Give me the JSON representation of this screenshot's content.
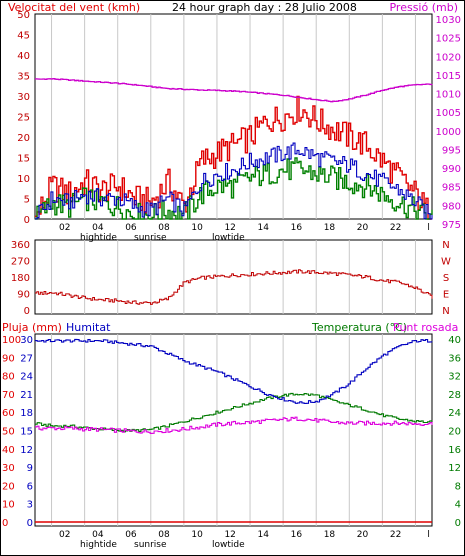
{
  "header": {
    "left_title": "Velocitat del vent (kmh)",
    "center_title": "24 hour graph day : 28 Julio 2008",
    "right_title": "Pressió (mb)"
  },
  "panel3_header": {
    "rain_label": "Pluja (mm)",
    "humidity_label": "Humitat",
    "temp_label": "Temperatura (°C)",
    "dew_label": "Punt rosada"
  },
  "hour_ticks": [
    "02",
    "04",
    "06",
    "08",
    "10",
    "12",
    "14",
    "16",
    "18",
    "20",
    "22",
    "l"
  ],
  "events_top": {
    "hightide": "hightide",
    "sunrise": "sunrise",
    "lowtide": "lowtide"
  },
  "events_bottom": {
    "hightide": "hightide",
    "sunrise": "sunrise",
    "lowtide": "lowtide"
  },
  "colors": {
    "gust": "#e00000",
    "wind": "#0000c0",
    "green": "#008000",
    "pressure": "#cc00cc",
    "humidity": "#0000c0",
    "temp": "#007a00",
    "dew": "#dd00dd",
    "rain": "#e00000",
    "grid": "#c8c8c8",
    "axis_left_red": "#c00000",
    "axis_right_magenta": "#cc00cc"
  },
  "chart_data": [
    {
      "type": "line",
      "title": "24 hour graph day : 28 Julio 2008",
      "ylabel": "Velocitat del vent (kmh)",
      "ylabel_right": "Pressió (mb)",
      "ylim": [
        0,
        50
      ],
      "ylim_right": [
        975,
        1030
      ],
      "yticks": [
        "50",
        "45",
        "40",
        "35",
        "30",
        "25",
        "20",
        "15",
        "10",
        "5",
        "0"
      ],
      "yticks_right": [
        "1030",
        "1025",
        "1020",
        "1015",
        "1010",
        "1005",
        "1000",
        "995",
        "990",
        "985",
        "980",
        "975"
      ],
      "hours": [
        0,
        1,
        2,
        3,
        4,
        5,
        6,
        7,
        8,
        9,
        10,
        11,
        12,
        13,
        14,
        15,
        16,
        17,
        18,
        19,
        20,
        21,
        22,
        23,
        24
      ],
      "series": [
        {
          "name": "gust",
          "values": [
            0,
            8,
            6,
            9,
            7,
            8,
            5,
            4,
            9,
            3,
            14,
            16,
            18,
            20,
            24,
            25,
            27,
            24,
            22,
            20,
            18,
            14,
            10,
            6,
            0
          ]
        },
        {
          "name": "wind",
          "values": [
            0,
            5,
            4,
            6,
            5,
            5,
            3,
            2,
            5,
            2,
            9,
            11,
            12,
            14,
            15,
            16,
            17,
            15,
            14,
            13,
            11,
            9,
            7,
            4,
            0
          ]
        },
        {
          "name": "green",
          "values": [
            0,
            4,
            3,
            5,
            4,
            3,
            1,
            1,
            2,
            1,
            6,
            8,
            8,
            10,
            11,
            12,
            12,
            11,
            10,
            9,
            8,
            6,
            4,
            2,
            0
          ]
        },
        {
          "name": "pressure",
          "values": [
            1012.5,
            1012.6,
            1012.3,
            1012,
            1011.7,
            1011.4,
            1011,
            1010.5,
            1010,
            1009.8,
            1009.6,
            1009.5,
            1009.3,
            1009,
            1008.6,
            1008.2,
            1007.6,
            1007,
            1006.5,
            1007.2,
            1008.3,
            1009.6,
            1010.5,
            1011,
            1011.2
          ]
        }
      ]
    },
    {
      "type": "line",
      "ylim": [
        0,
        360
      ],
      "yticks": [
        "360",
        "270",
        "180",
        "90",
        "0"
      ],
      "compass": [
        "N",
        "W",
        "S",
        "E",
        "N"
      ],
      "hours": [
        0,
        1,
        2,
        3,
        4,
        5,
        6,
        7,
        8,
        9,
        10,
        11,
        12,
        13,
        14,
        15,
        16,
        17,
        18,
        19,
        20,
        21,
        22,
        23,
        24
      ],
      "series": [
        {
          "name": "direction",
          "values": [
            90,
            95,
            80,
            65,
            55,
            50,
            40,
            38,
            60,
            150,
            175,
            182,
            190,
            195,
            200,
            205,
            210,
            205,
            200,
            190,
            180,
            160,
            150,
            120,
            70
          ]
        }
      ]
    },
    {
      "type": "line",
      "ylim": [
        0,
        100
      ],
      "ylim_right": [
        0,
        40
      ],
      "yticks": [
        "100",
        "90",
        "80",
        "70",
        "60",
        "50",
        "40",
        "30",
        "20",
        "10",
        "0"
      ],
      "yticks_mid": [
        "30",
        "27",
        "24",
        "21",
        "18",
        "15",
        "12",
        "9",
        "6",
        "3",
        "0"
      ],
      "yticks_right": [
        "40",
        "36",
        "32",
        "28",
        "24",
        "20",
        "16",
        "12",
        "8",
        "4",
        "0"
      ],
      "hours": [
        0,
        1,
        2,
        3,
        4,
        5,
        6,
        7,
        8,
        9,
        10,
        11,
        12,
        13,
        14,
        15,
        16,
        17,
        18,
        19,
        20,
        21,
        22,
        23,
        24
      ],
      "series": [
        {
          "name": "Humitat",
          "values": [
            99,
            99,
            99,
            99,
            99,
            98,
            97,
            96,
            92,
            88,
            85,
            82,
            78,
            74,
            70,
            67,
            65,
            66,
            70,
            76,
            84,
            91,
            96,
            99,
            99
          ]
        },
        {
          "name": "Temperatura (°C)",
          "values": [
            21.5,
            21,
            21,
            20.6,
            20.3,
            20,
            20,
            20.2,
            21,
            22,
            23,
            24,
            25,
            26,
            27,
            27.7,
            28,
            27.7,
            26.5,
            25.5,
            24.5,
            23.3,
            22.5,
            22,
            21.8
          ]
        },
        {
          "name": "Punt rosada",
          "values": [
            20.5,
            20.5,
            20.5,
            20.3,
            20.2,
            20,
            19.8,
            19.8,
            20,
            20.3,
            20.8,
            21.3,
            21.6,
            21.8,
            22.1,
            22.4,
            22.6,
            22.2,
            21.8,
            21.6,
            21.6,
            21.6,
            21.6,
            21.5,
            21.5
          ]
        },
        {
          "name": "Pluja (mm)",
          "values": [
            0,
            0,
            0,
            0,
            0,
            0,
            0,
            0,
            0,
            0,
            0,
            0,
            0,
            0,
            0,
            0,
            0,
            0,
            0,
            0,
            0,
            0,
            0,
            0,
            0
          ]
        }
      ]
    }
  ]
}
